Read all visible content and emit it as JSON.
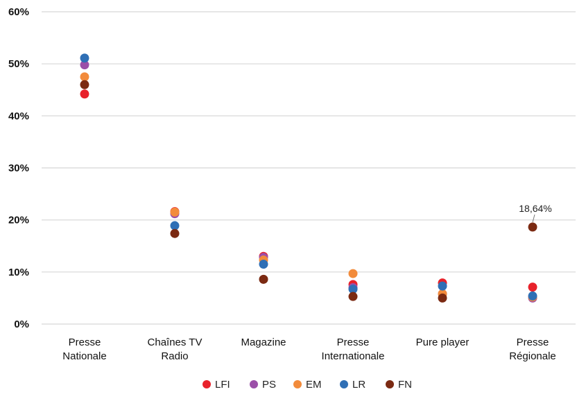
{
  "chart_data": {
    "type": "scatter",
    "categories": [
      [
        "Presse",
        "Nationale"
      ],
      [
        "Chaînes TV",
        "Radio"
      ],
      [
        "Magazine"
      ],
      [
        "Presse",
        "Internationale"
      ],
      [
        "Pure player"
      ],
      [
        "Presse",
        "Régionale"
      ]
    ],
    "y_ticks": [
      "0%",
      "10%",
      "20%",
      "30%",
      "40%",
      "50%",
      "60%"
    ],
    "ylim": [
      0,
      60
    ],
    "grid": true,
    "legend_position": "bottom",
    "series": [
      {
        "name": "LFI",
        "color": "#e8222b",
        "values": [
          44.2,
          21.6,
          13.0,
          7.6,
          7.9,
          7.1
        ]
      },
      {
        "name": "PS",
        "color": "#9b4fa8",
        "values": [
          49.8,
          21.2,
          12.8,
          7.0,
          5.8,
          5.0
        ]
      },
      {
        "name": "EM",
        "color": "#f28b3b",
        "values": [
          47.5,
          21.5,
          12.3,
          9.7,
          5.8,
          5.2
        ]
      },
      {
        "name": "LR",
        "color": "#2f6fb5",
        "values": [
          51.1,
          18.9,
          11.5,
          6.7,
          7.3,
          5.4
        ]
      },
      {
        "name": "FN",
        "color": "#7b2a12",
        "values": [
          46.0,
          17.4,
          8.6,
          5.3,
          5.0,
          18.64
        ]
      }
    ],
    "annotations": [
      {
        "text": "18,64%",
        "series": "FN",
        "category_index": 5
      }
    ]
  }
}
